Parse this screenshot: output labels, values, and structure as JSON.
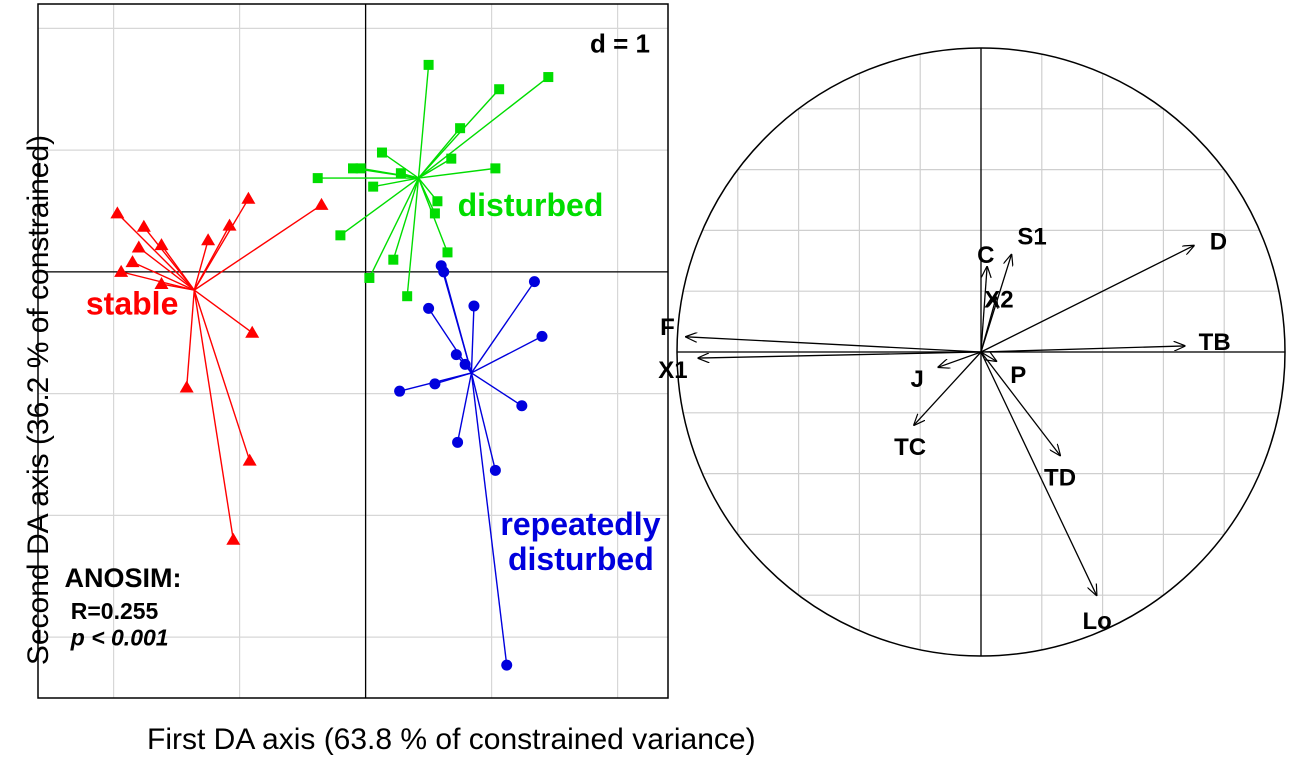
{
  "chart_data": [
    {
      "type": "scatter",
      "title": "",
      "xlabel": "First DA axis (63.8 % of constrained variance)",
      "ylabel": "Second DA axis (36.2 % of constrained)",
      "scale_label": "d = 1",
      "grid": true,
      "xlim": [
        -2.6,
        2.4
      ],
      "ylim": [
        -3.5,
        2.2
      ],
      "annotation": {
        "title": "ANOSIM:",
        "statistic": "R=0.255",
        "pvalue": "p < 0.001"
      },
      "series": [
        {
          "name": "stable",
          "label_lines": [
            "stable"
          ],
          "marker": "triangle",
          "color": "#ff0000",
          "centroid": [
            -1.36,
            -0.15
          ],
          "points": [
            [
              -1.97,
              0.48
            ],
            [
              -1.76,
              0.37
            ],
            [
              -1.8,
              0.2
            ],
            [
              -1.85,
              0.08
            ],
            [
              -1.94,
              0.0
            ],
            [
              -1.62,
              0.22
            ],
            [
              -1.25,
              0.26
            ],
            [
              -1.08,
              0.38
            ],
            [
              -0.93,
              0.6
            ],
            [
              -0.35,
              0.55
            ],
            [
              -1.62,
              -0.1
            ],
            [
              -0.9,
              -0.5
            ],
            [
              -1.42,
              -0.95
            ],
            [
              -0.92,
              -1.55
            ],
            [
              -1.05,
              -2.2
            ]
          ]
        },
        {
          "name": "disturbed",
          "label_lines": [
            "disturbed"
          ],
          "marker": "square",
          "color": "#00dd00",
          "centroid": [
            0.42,
            0.77
          ],
          "points": [
            [
              0.5,
              1.7
            ],
            [
              1.06,
              1.5
            ],
            [
              1.45,
              1.6
            ],
            [
              0.75,
              1.18
            ],
            [
              0.68,
              0.93
            ],
            [
              1.03,
              0.85
            ],
            [
              0.13,
              0.98
            ],
            [
              -0.1,
              0.85
            ],
            [
              -0.04,
              0.85
            ],
            [
              -0.38,
              0.77
            ],
            [
              0.28,
              0.81
            ],
            [
              0.06,
              0.7
            ],
            [
              0.57,
              0.58
            ],
            [
              0.55,
              0.48
            ],
            [
              -0.2,
              0.3
            ],
            [
              0.22,
              0.1
            ],
            [
              0.65,
              0.16
            ],
            [
              0.03,
              -0.05
            ],
            [
              0.33,
              -0.2
            ]
          ]
        },
        {
          "name": "repeatedly disturbed",
          "label_lines": [
            "repeatedly",
            "disturbed"
          ],
          "marker": "circle",
          "color": "#0000dd",
          "centroid": [
            0.84,
            -0.83
          ],
          "points": [
            [
              0.6,
              0.05
            ],
            [
              0.62,
              0.0
            ],
            [
              1.34,
              -0.08
            ],
            [
              0.86,
              -0.28
            ],
            [
              0.5,
              -0.3
            ],
            [
              1.4,
              -0.53
            ],
            [
              0.72,
              -0.68
            ],
            [
              0.79,
              -0.76
            ],
            [
              0.55,
              -0.92
            ],
            [
              0.27,
              -0.98
            ],
            [
              1.24,
              -1.1
            ],
            [
              0.73,
              -1.4
            ],
            [
              1.03,
              -1.63
            ],
            [
              1.12,
              -3.23
            ]
          ]
        }
      ]
    },
    {
      "type": "correlation-circle",
      "title": "",
      "grid": true,
      "xlim": [
        -1,
        1
      ],
      "ylim": [
        -1,
        1
      ],
      "vectors": [
        {
          "label": "D",
          "x": 0.7,
          "y": 0.35
        },
        {
          "label": "TB",
          "x": 0.67,
          "y": 0.02
        },
        {
          "label": "F",
          "x": -0.97,
          "y": 0.05
        },
        {
          "label": "X1",
          "x": -0.93,
          "y": -0.02
        },
        {
          "label": "C",
          "x": 0.02,
          "y": 0.28
        },
        {
          "label": "S1",
          "x": 0.1,
          "y": 0.32
        },
        {
          "label": "X2",
          "x": 0.05,
          "y": 0.18
        },
        {
          "label": "J",
          "x": -0.14,
          "y": -0.05
        },
        {
          "label": "P",
          "x": 0.05,
          "y": -0.03
        },
        {
          "label": "TC",
          "x": -0.22,
          "y": -0.24
        },
        {
          "label": "TD",
          "x": 0.26,
          "y": -0.34
        },
        {
          "label": "Lo",
          "x": 0.38,
          "y": -0.8
        }
      ]
    }
  ]
}
